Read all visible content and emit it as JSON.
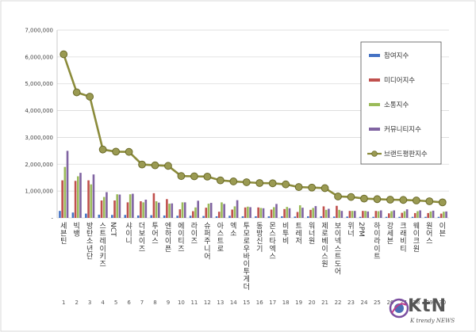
{
  "chart_data": {
    "type": "bar",
    "title": "",
    "xlabel": "",
    "ylabel": "",
    "ylim": [
      0,
      7000000
    ],
    "yticks": [
      "7,000,000",
      "6,000,000",
      "5,000,000",
      "4,000,000",
      "3,000,000",
      "2,000,000",
      "1,000,000",
      "-"
    ],
    "legend_position": "top-right",
    "categories": [
      "세븐틴",
      "빅뱅",
      "방탄소년단",
      "스트레이키즈",
      "NCT",
      "샤이니",
      "더보이즈",
      "투어스",
      "엔하이픈",
      "에이티즈",
      "라이즈",
      "슈퍼주니어",
      "아스트로",
      "엑소",
      "투모로우바이투게더",
      "동방신기",
      "몬스타엑스",
      "비투비",
      "트레저",
      "워너원",
      "제로베이스원",
      "보이넥스트도어",
      "위너",
      "2PM",
      "하이라이트",
      "강세븐",
      "크래비티",
      "웨이크원",
      "원어스",
      "이븐"
    ],
    "ranks": [
      "1",
      "2",
      "3",
      "4",
      "5",
      "6",
      "7",
      "8",
      "9",
      "10",
      "11",
      "12",
      "13",
      "14",
      "15",
      "16",
      "17",
      "18",
      "19",
      "20",
      "21",
      "22",
      "23",
      "24",
      "25",
      "26",
      "27",
      "28",
      "29",
      "30"
    ],
    "series": [
      {
        "name": "참여지수",
        "color": "#4472c4",
        "values": [
          260000,
          200000,
          160000,
          120000,
          110000,
          110000,
          90000,
          100000,
          90000,
          80000,
          80000,
          70000,
          60000,
          80000,
          60000,
          60000,
          60000,
          60000,
          50000,
          60000,
          60000,
          50000,
          50000,
          40000,
          40000,
          40000,
          40000,
          40000,
          40000,
          40000
        ]
      },
      {
        "name": "미디어지수",
        "color": "#c0504d",
        "values": [
          1400000,
          1380000,
          1400000,
          650000,
          650000,
          580000,
          620000,
          920000,
          700000,
          320000,
          250000,
          380000,
          230000,
          310000,
          390000,
          390000,
          310000,
          330000,
          220000,
          300000,
          430000,
          450000,
          260000,
          260000,
          260000,
          170000,
          190000,
          180000,
          180000,
          160000
        ]
      },
      {
        "name": "소통지수",
        "color": "#9bbb59",
        "values": [
          1900000,
          1550000,
          1250000,
          780000,
          880000,
          880000,
          580000,
          620000,
          530000,
          580000,
          390000,
          530000,
          580000,
          430000,
          420000,
          370000,
          400000,
          410000,
          470000,
          370000,
          300000,
          300000,
          260000,
          260000,
          250000,
          250000,
          250000,
          250000,
          240000,
          230000
        ]
      },
      {
        "name": "커뮤니티지수",
        "color": "#8064a2",
        "values": [
          2500000,
          1680000,
          1620000,
          960000,
          870000,
          900000,
          680000,
          570000,
          540000,
          580000,
          640000,
          560000,
          520000,
          660000,
          400000,
          360000,
          520000,
          360000,
          380000,
          440000,
          340000,
          260000,
          260000,
          240000,
          280000,
          280000,
          320000,
          280000,
          270000,
          240000
        ]
      },
      {
        "name": "브랜드평판지수",
        "color": "#8b8b3a",
        "type": "line",
        "values": [
          6100000,
          4680000,
          4520000,
          2550000,
          2470000,
          2460000,
          1990000,
          1960000,
          1940000,
          1560000,
          1550000,
          1540000,
          1400000,
          1360000,
          1330000,
          1300000,
          1290000,
          1250000,
          1150000,
          1130000,
          1110000,
          800000,
          780000,
          720000,
          700000,
          680000,
          670000,
          650000,
          620000,
          580000
        ]
      }
    ]
  },
  "logo": {
    "main": "KtN",
    "sub": "K trendy NEWS"
  }
}
